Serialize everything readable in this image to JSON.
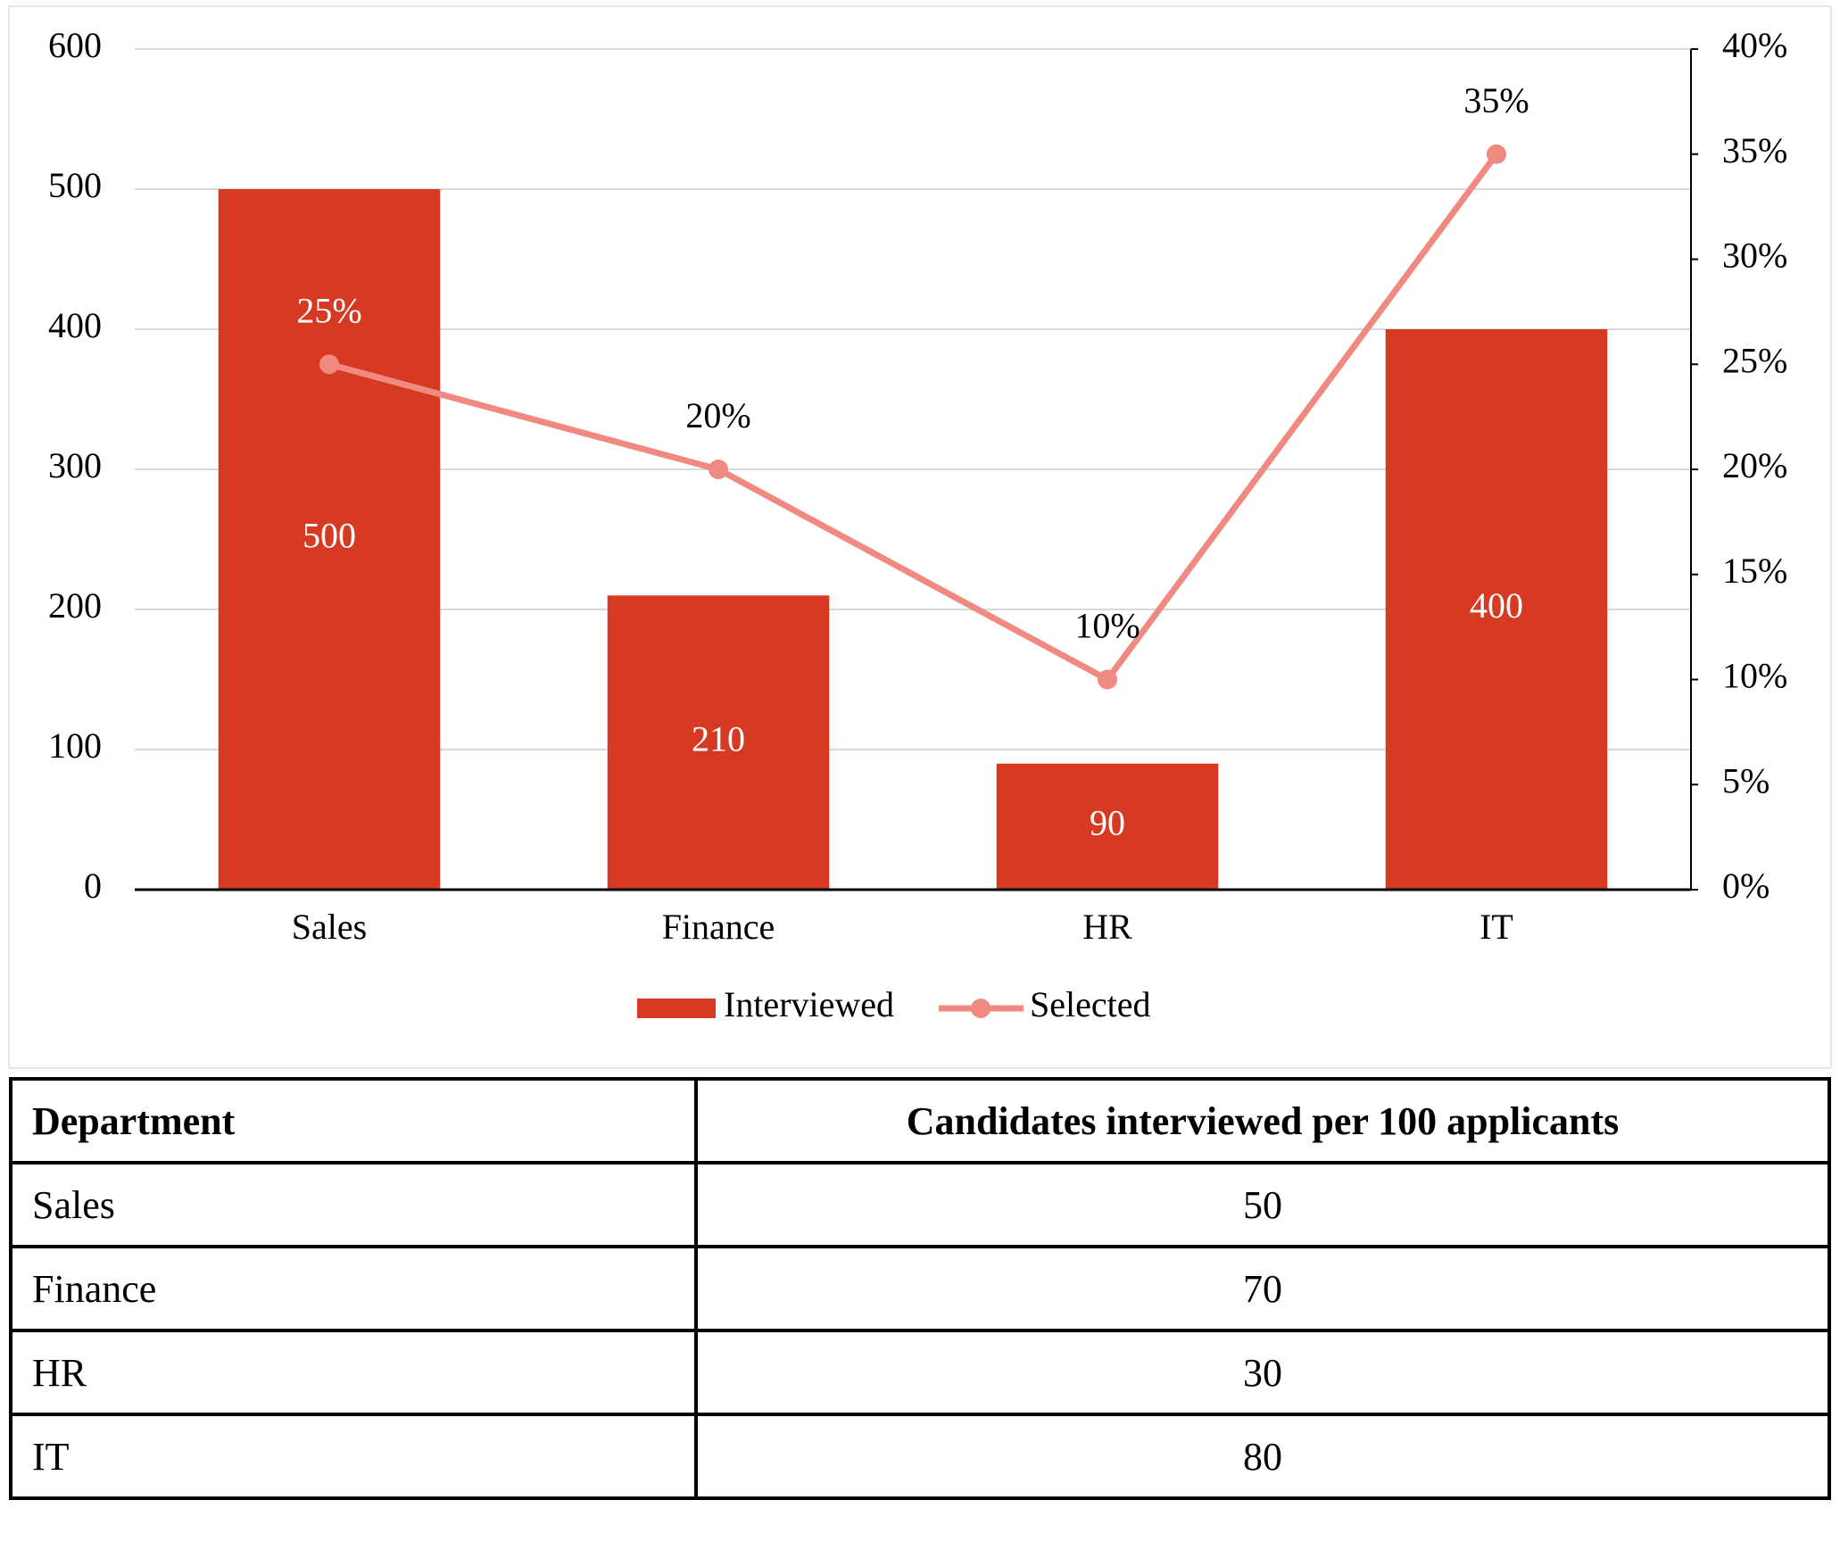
{
  "chart_data": {
    "type": "bar",
    "categories": [
      "Sales",
      "Finance",
      "HR",
      "IT"
    ],
    "series": [
      {
        "name": "Interviewed",
        "type": "bar",
        "color": "#d63a22",
        "values": [
          500,
          210,
          90,
          400
        ]
      },
      {
        "name": "Selected",
        "type": "line",
        "axis": "y2",
        "color": "#f08a80",
        "values": [
          25,
          20,
          10,
          35
        ],
        "value_labels": [
          "25%",
          "20%",
          "10%",
          "35%"
        ]
      }
    ],
    "ylim": [
      0,
      600
    ],
    "yticks": [
      0,
      100,
      200,
      300,
      400,
      500,
      600
    ],
    "y2lim": [
      0,
      40
    ],
    "y2ticks": [
      {
        "value": 0,
        "label": "0%"
      },
      {
        "value": 5,
        "label": "5%"
      },
      {
        "value": 10,
        "label": "10%"
      },
      {
        "value": 15,
        "label": "15%"
      },
      {
        "value": 20,
        "label": "20%"
      },
      {
        "value": 25,
        "label": "25%"
      },
      {
        "value": 30,
        "label": "30%"
      },
      {
        "value": 35,
        "label": "35%"
      },
      {
        "value": 40,
        "label": "40%"
      }
    ],
    "grid": true,
    "legend": "bottom"
  },
  "table": {
    "header": [
      "Department",
      "Candidates interviewed per 100 applicants"
    ],
    "rows": [
      [
        "Sales",
        50
      ],
      [
        "Finance",
        70
      ],
      [
        "HR",
        30
      ],
      [
        "IT",
        80
      ]
    ]
  }
}
